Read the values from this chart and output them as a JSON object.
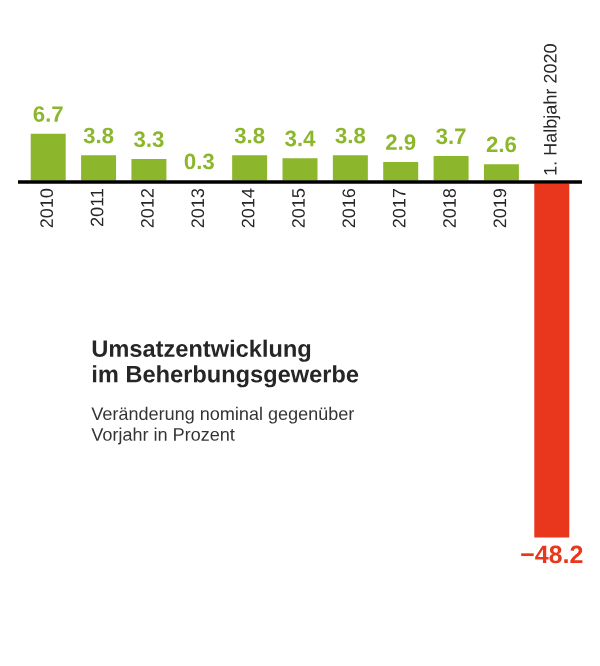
{
  "chart_data": {
    "type": "bar",
    "title": "Umsatzentwicklung\nim Beherbungsgewerbe",
    "subtitle": "Veränderung nominal gegenüber\nVorjahr in Prozent",
    "categories": [
      "2010",
      "2011",
      "2012",
      "2013",
      "2014",
      "2015",
      "2016",
      "2017",
      "2018",
      "2019",
      "1. Halbjahr 2020"
    ],
    "values": [
      6.7,
      3.8,
      3.3,
      0.3,
      3.8,
      3.4,
      3.8,
      2.9,
      3.7,
      2.6,
      -48.2
    ],
    "colors": [
      "#8cb62b",
      "#8cb62b",
      "#8cb62b",
      "#8cb62b",
      "#8cb62b",
      "#8cb62b",
      "#8cb62b",
      "#8cb62b",
      "#8cb62b",
      "#8cb62b",
      "#e8371c"
    ],
    "data_labels": true
  }
}
